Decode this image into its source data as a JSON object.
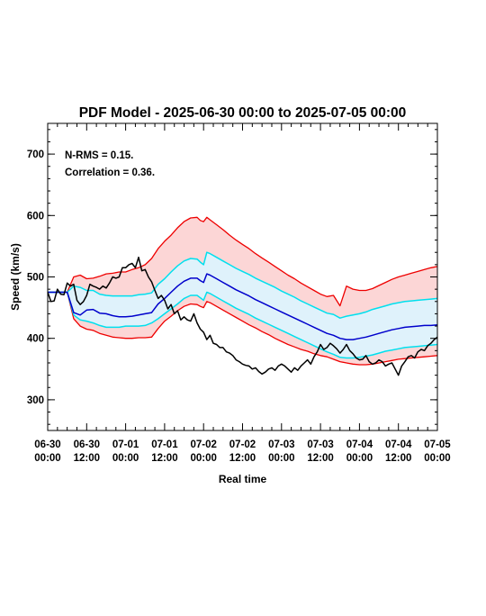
{
  "chart_data": {
    "type": "line",
    "title": "PDF Model - 2025-06-30 00:00 to 2025-07-05 00:00",
    "xlabel": "Real time",
    "ylabel": "Speed (km/s)",
    "annotations": [
      "N-RMS = 0.15.",
      "Correlation = 0.36."
    ],
    "xlim": [
      0,
      120
    ],
    "ylim": [
      250,
      750
    ],
    "y_ticks": [
      300,
      400,
      500,
      600,
      700
    ],
    "x_ticks": [
      {
        "hours": 0,
        "date": "06-30",
        "time": "00:00"
      },
      {
        "hours": 12,
        "date": "06-30",
        "time": "12:00"
      },
      {
        "hours": 24,
        "date": "07-01",
        "time": "00:00"
      },
      {
        "hours": 36,
        "date": "07-01",
        "time": "12:00"
      },
      {
        "hours": 48,
        "date": "07-02",
        "time": "00:00"
      },
      {
        "hours": 60,
        "date": "07-02",
        "time": "12:00"
      },
      {
        "hours": 72,
        "date": "07-03",
        "time": "00:00"
      },
      {
        "hours": 84,
        "date": "07-03",
        "time": "12:00"
      },
      {
        "hours": 96,
        "date": "07-04",
        "time": "00:00"
      },
      {
        "hours": 108,
        "date": "07-04",
        "time": "12:00"
      },
      {
        "hours": 120,
        "date": "07-05",
        "time": "00:00"
      }
    ],
    "grid": false,
    "colors": {
      "observed": "#000000",
      "median": "#0000cc",
      "inner_band": "#00e0ee",
      "outer_band": "#ee0000",
      "inner_fill": "#dff2fb",
      "outer_fill": "#fcd6d6"
    },
    "series": [
      {
        "key": "outer_upper",
        "x": [
          0,
          6,
          8,
          10,
          12,
          14,
          16,
          18,
          20,
          22,
          24,
          26,
          28,
          30,
          32,
          34,
          36,
          38,
          40,
          42,
          44,
          46,
          47,
          48,
          49,
          50,
          52,
          54,
          56,
          58,
          60,
          62,
          64,
          66,
          68,
          70,
          72,
          74,
          76,
          78,
          80,
          82,
          84,
          86,
          88,
          90,
          92,
          94,
          96,
          98,
          100,
          102,
          104,
          106,
          108,
          110,
          112,
          114,
          116,
          118,
          120
        ],
        "y": [
          475,
          475,
          500,
          503,
          497,
          498,
          501,
          505,
          506,
          508,
          508,
          512,
          515,
          520,
          530,
          546,
          558,
          568,
          580,
          590,
          596,
          597,
          592,
          590,
          597,
          593,
          585,
          577,
          568,
          560,
          553,
          546,
          538,
          531,
          524,
          517,
          510,
          503,
          497,
          490,
          484,
          478,
          472,
          468,
          470,
          453,
          485,
          480,
          478,
          478,
          481,
          486,
          491,
          496,
          500,
          503,
          506,
          509,
          512,
          515,
          517
        ]
      },
      {
        "key": "inner_upper",
        "x": [
          0,
          6,
          8,
          10,
          12,
          14,
          16,
          18,
          20,
          22,
          24,
          26,
          28,
          30,
          32,
          34,
          36,
          38,
          40,
          42,
          44,
          46,
          47,
          48,
          49,
          50,
          52,
          54,
          56,
          58,
          60,
          62,
          64,
          66,
          68,
          70,
          72,
          74,
          76,
          78,
          80,
          82,
          84,
          86,
          88,
          90,
          92,
          94,
          96,
          98,
          100,
          102,
          104,
          106,
          108,
          110,
          112,
          114,
          116,
          118,
          120
        ],
        "y": [
          475,
          475,
          485,
          483,
          478,
          478,
          472,
          470,
          469,
          469,
          469,
          469,
          471,
          472,
          474,
          488,
          497,
          508,
          518,
          526,
          530,
          529,
          524,
          520,
          540,
          538,
          532,
          526,
          520,
          514,
          509,
          504,
          498,
          493,
          488,
          483,
          477,
          472,
          467,
          461,
          456,
          451,
          446,
          441,
          439,
          433,
          436,
          438,
          440,
          443,
          447,
          450,
          453,
          456,
          458,
          460,
          461,
          462,
          463,
          464,
          465
        ]
      },
      {
        "key": "median",
        "x": [
          0,
          6,
          8,
          10,
          12,
          14,
          16,
          18,
          20,
          22,
          24,
          26,
          28,
          30,
          32,
          34,
          36,
          38,
          40,
          42,
          44,
          46,
          47,
          48,
          49,
          50,
          52,
          54,
          56,
          58,
          60,
          62,
          64,
          66,
          68,
          70,
          72,
          74,
          76,
          78,
          80,
          82,
          84,
          86,
          88,
          90,
          92,
          94,
          96,
          98,
          100,
          102,
          104,
          106,
          108,
          110,
          112,
          114,
          116,
          118,
          120
        ],
        "y": [
          475,
          475,
          442,
          438,
          446,
          447,
          441,
          440,
          437,
          435,
          435,
          436,
          438,
          440,
          442,
          456,
          465,
          475,
          485,
          493,
          498,
          498,
          494,
          491,
          505,
          503,
          497,
          491,
          485,
          479,
          474,
          469,
          463,
          458,
          453,
          448,
          443,
          438,
          433,
          428,
          423,
          418,
          413,
          408,
          405,
          400,
          398,
          398,
          400,
          402,
          405,
          408,
          411,
          414,
          416,
          418,
          419,
          420,
          421,
          421,
          422
        ]
      },
      {
        "key": "inner_lower",
        "x": [
          0,
          6,
          8,
          10,
          12,
          14,
          16,
          18,
          20,
          22,
          24,
          26,
          28,
          30,
          32,
          34,
          36,
          38,
          40,
          42,
          44,
          46,
          47,
          48,
          49,
          50,
          52,
          54,
          56,
          58,
          60,
          62,
          64,
          66,
          68,
          70,
          72,
          74,
          76,
          78,
          80,
          82,
          84,
          86,
          88,
          90,
          92,
          94,
          96,
          98,
          100,
          102,
          104,
          106,
          108,
          110,
          112,
          114,
          116,
          118,
          120
        ],
        "y": [
          475,
          475,
          438,
          430,
          428,
          425,
          421,
          418,
          418,
          418,
          420,
          420,
          420,
          421,
          425,
          432,
          440,
          448,
          456,
          465,
          470,
          470,
          466,
          462,
          475,
          473,
          467,
          461,
          455,
          449,
          444,
          439,
          433,
          428,
          423,
          418,
          413,
          408,
          403,
          398,
          393,
          388,
          383,
          378,
          374,
          369,
          368,
          368,
          369,
          371,
          373,
          376,
          379,
          381,
          383,
          385,
          386,
          387,
          388,
          389,
          390
        ]
      },
      {
        "key": "outer_lower",
        "x": [
          0,
          6,
          8,
          10,
          12,
          14,
          16,
          18,
          20,
          22,
          24,
          26,
          28,
          30,
          32,
          34,
          36,
          38,
          40,
          42,
          44,
          46,
          47,
          48,
          49,
          50,
          52,
          54,
          56,
          58,
          60,
          62,
          64,
          66,
          68,
          70,
          72,
          74,
          76,
          78,
          80,
          82,
          84,
          86,
          88,
          90,
          92,
          94,
          96,
          98,
          100,
          102,
          104,
          106,
          108,
          110,
          112,
          114,
          116,
          118,
          120
        ],
        "y": [
          475,
          475,
          432,
          420,
          415,
          413,
          408,
          405,
          402,
          401,
          400,
          400,
          401,
          401,
          402,
          416,
          428,
          436,
          445,
          452,
          456,
          455,
          452,
          450,
          460,
          458,
          452,
          446,
          440,
          434,
          428,
          422,
          417,
          411,
          406,
          400,
          395,
          390,
          386,
          382,
          379,
          375,
          372,
          370,
          366,
          362,
          360,
          358,
          357,
          357,
          358,
          360,
          362,
          364,
          366,
          367,
          368,
          369,
          370,
          371,
          372
        ]
      },
      {
        "key": "observed",
        "x": [
          0,
          1,
          2,
          3,
          4,
          5,
          6,
          7,
          8,
          9,
          10,
          11,
          12,
          13,
          14,
          15,
          16,
          17,
          18,
          19,
          20,
          21,
          22,
          23,
          24,
          25,
          26,
          27,
          28,
          29,
          30,
          31,
          32,
          33,
          34,
          35,
          36,
          37,
          38,
          39,
          40,
          41,
          42,
          43,
          44,
          45,
          46,
          47,
          48,
          49,
          50,
          51,
          52,
          53,
          54,
          55,
          56,
          57,
          58,
          59,
          60,
          61,
          62,
          63,
          64,
          65,
          66,
          67,
          68,
          69,
          70,
          71,
          72,
          73,
          74,
          75,
          76,
          77,
          78,
          79,
          80,
          81,
          82,
          83,
          84,
          85,
          86,
          87,
          88,
          89,
          90,
          91,
          92,
          93,
          94,
          95,
          96,
          97,
          98,
          99,
          100,
          101,
          102,
          103,
          104,
          105,
          106,
          107,
          108,
          109,
          110,
          111,
          112,
          113,
          114,
          115,
          116,
          117,
          118,
          119,
          120
        ],
        "y": [
          475,
          460,
          461,
          480,
          472,
          471,
          490,
          485,
          488,
          462,
          455,
          460,
          470,
          488,
          485,
          483,
          480,
          485,
          482,
          490,
          500,
          498,
          500,
          515,
          515,
          520,
          522,
          515,
          532,
          510,
          512,
          500,
          492,
          478,
          465,
          470,
          462,
          448,
          455,
          440,
          445,
          430,
          435,
          430,
          428,
          440,
          425,
          415,
          410,
          398,
          405,
          392,
          390,
          385,
          385,
          378,
          376,
          372,
          365,
          362,
          358,
          356,
          355,
          350,
          352,
          346,
          342,
          345,
          350,
          352,
          348,
          355,
          358,
          355,
          350,
          345,
          352,
          348,
          355,
          360,
          365,
          358,
          370,
          378,
          390,
          382,
          385,
          392,
          388,
          383,
          376,
          382,
          390,
          380,
          375,
          368,
          365,
          366,
          372,
          362,
          358,
          360,
          365,
          362,
          355,
          358,
          360,
          350,
          340,
          355,
          362,
          370,
          372,
          368,
          378,
          382,
          380,
          388,
          392,
          398,
          402
        ]
      }
    ]
  }
}
